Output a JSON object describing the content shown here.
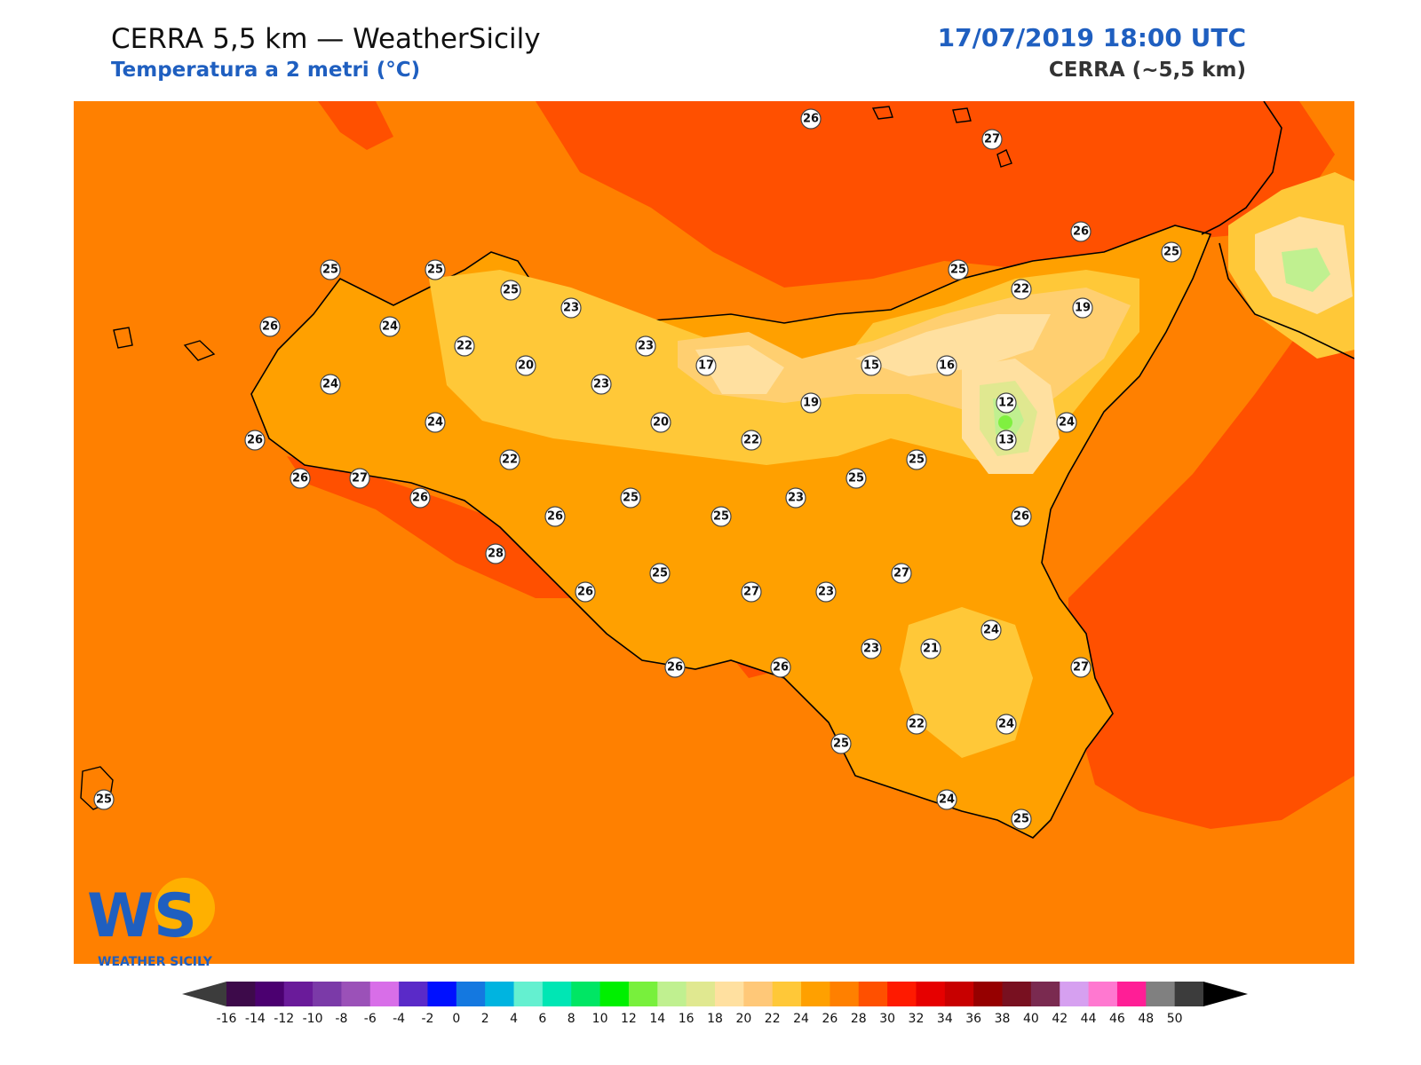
{
  "header": {
    "title": "CERRA 5,5 km — WeatherSicily",
    "subtitle": "Temperatura a 2 metri (°C)",
    "datetime": "17/07/2019 18:00 UTC",
    "model": "CERRA (~5,5 km)"
  },
  "logo": {
    "text": "WEATHER SICILY",
    "letters": "WS"
  },
  "colors": {
    "bg_field": "#ff8000",
    "sea_warm": "#ff5000",
    "t24": "#ffa000",
    "t22": "#ffc838",
    "t20": "#ffcf70",
    "t18": "#ffe0a0",
    "t16": "#e0e890",
    "t14": "#c0f090",
    "t10": "#80f040",
    "coast": "#000000"
  },
  "stations": [
    {
      "value": "26"
    },
    {
      "value": "27"
    },
    {
      "value": "26"
    },
    {
      "value": "25"
    },
    {
      "value": "25"
    },
    {
      "value": "25"
    },
    {
      "value": "25"
    },
    {
      "value": "23"
    },
    {
      "value": "22"
    },
    {
      "value": "19"
    },
    {
      "value": "26"
    },
    {
      "value": "24"
    },
    {
      "value": "25"
    },
    {
      "value": "23"
    },
    {
      "value": "22"
    },
    {
      "value": "20"
    },
    {
      "value": "23"
    },
    {
      "value": "17"
    },
    {
      "value": "15"
    },
    {
      "value": "16"
    },
    {
      "value": "24"
    },
    {
      "value": "19"
    },
    {
      "value": "12"
    },
    {
      "value": "24"
    },
    {
      "value": "13"
    },
    {
      "value": "26"
    },
    {
      "value": "20"
    },
    {
      "value": "22"
    },
    {
      "value": "24"
    },
    {
      "value": "22"
    },
    {
      "value": "25"
    },
    {
      "value": "25"
    },
    {
      "value": "26"
    },
    {
      "value": "27"
    },
    {
      "value": "26"
    },
    {
      "value": "23"
    },
    {
      "value": "25"
    },
    {
      "value": "26"
    },
    {
      "value": "25"
    },
    {
      "value": "26"
    },
    {
      "value": "28"
    },
    {
      "value": "27"
    },
    {
      "value": "25"
    },
    {
      "value": "26"
    },
    {
      "value": "27"
    },
    {
      "value": "23"
    },
    {
      "value": "24"
    },
    {
      "value": "23"
    },
    {
      "value": "21"
    },
    {
      "value": "27"
    },
    {
      "value": "26"
    },
    {
      "value": "26"
    },
    {
      "value": "22"
    },
    {
      "value": "24"
    },
    {
      "value": "25"
    },
    {
      "value": "24"
    },
    {
      "value": "25"
    },
    {
      "value": "25"
    }
  ],
  "colorbar": {
    "ticks": [
      "-16",
      "-14",
      "-12",
      "-10",
      "-8",
      "-6",
      "-4",
      "-2",
      "0",
      "2",
      "4",
      "6",
      "8",
      "10",
      "12",
      "14",
      "16",
      "18",
      "20",
      "22",
      "24",
      "26",
      "28",
      "30",
      "32",
      "34",
      "36",
      "38",
      "40",
      "42",
      "44",
      "46",
      "48",
      "50"
    ],
    "colors": [
      "#3d0a4a",
      "#4b0070",
      "#6a1b9a",
      "#7b3aa8",
      "#9b51b8",
      "#d86ee8",
      "#5a2ac8",
      "#0010ff",
      "#1478e0",
      "#00b4e0",
      "#64f0d0",
      "#00e6b4",
      "#00e664",
      "#00f000",
      "#78f03c",
      "#c0f090",
      "#e0e890",
      "#ffe0a0",
      "#ffc878",
      "#ffc838",
      "#ffa000",
      "#ff8000",
      "#ff5000",
      "#ff1a00",
      "#e60000",
      "#c80000",
      "#960000",
      "#781020",
      "#7a2a50",
      "#d6a0f0",
      "#ff78d0",
      "#ff1e96",
      "#808080",
      "#3c3c3c"
    ],
    "arrow_low": "#3c3c3c",
    "arrow_high": "#000000"
  }
}
